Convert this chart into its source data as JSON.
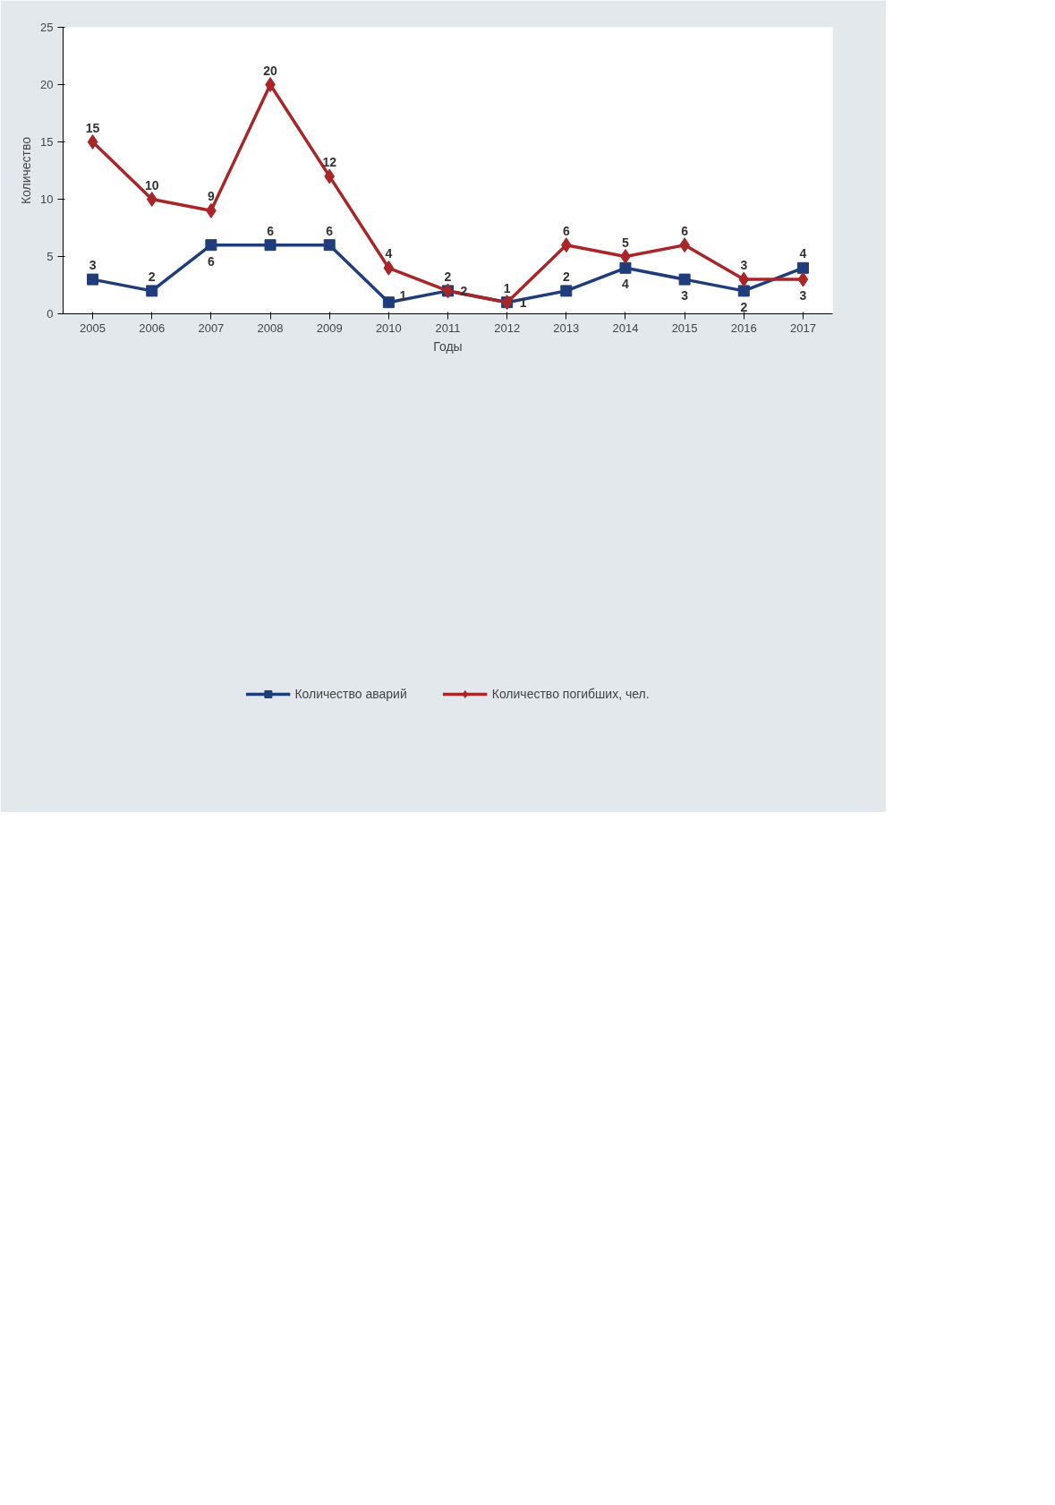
{
  "chart_data": {
    "type": "line",
    "xlabel": "Годы",
    "ylabel": "Количество",
    "categories": [
      "2005",
      "2006",
      "2007",
      "2008",
      "2009",
      "2010",
      "2011",
      "2012",
      "2013",
      "2014",
      "2015",
      "2016",
      "2017"
    ],
    "series": [
      {
        "name": "Количество аварий",
        "color": "#1f3d7a",
        "marker": "square",
        "values": [
          3,
          2,
          6,
          6,
          6,
          1,
          2,
          1,
          2,
          4,
          3,
          2,
          4
        ]
      },
      {
        "name": "Количество погибших, чел.",
        "color": "#a82528",
        "marker": "diamond",
        "values": [
          15,
          10,
          9,
          20,
          12,
          4,
          2,
          1,
          6,
          5,
          6,
          3,
          3
        ]
      }
    ],
    "ylim": [
      0,
      25
    ],
    "yticks": [
      0,
      5,
      10,
      15,
      20,
      25
    ],
    "grid": false,
    "legend": "bottom",
    "data_labels": true,
    "line_style": "solid"
  }
}
